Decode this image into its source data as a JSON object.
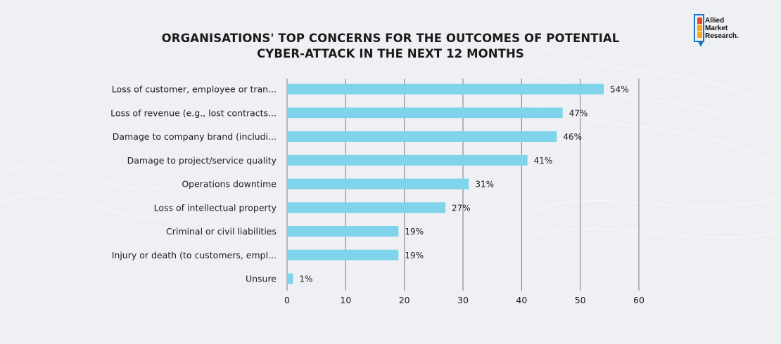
{
  "brand": {
    "line1": "Allied",
    "line2": "Market",
    "line3": "Research.",
    "colors": {
      "orange": "#f5a623",
      "red": "#e8452c",
      "blue": "#1d74c4"
    }
  },
  "chart_data": {
    "type": "bar",
    "orientation": "horizontal",
    "title_line1": "ORGANISATIONS' TOP CONCERNS FOR THE OUTCOMES OF POTENTIAL",
    "title_line2": "CYBER-ATTACK IN THE NEXT 12 MONTHS",
    "categories": [
      "Loss of customer, employee or tran...",
      "Loss of revenue (e.g., lost contracts...",
      "Damage to company brand (includi...",
      "Damage to project/service quality",
      "Operations downtime",
      "Loss of intellectual property",
      "Criminal or civil liabilities",
      "Injury or death (to customers, empl...",
      "Unsure"
    ],
    "values": [
      54,
      47,
      46,
      41,
      31,
      27,
      19,
      19,
      1
    ],
    "value_labels": [
      "54%",
      "47%",
      "46%",
      "41%",
      "31%",
      "27%",
      "19%",
      "19%",
      "1%"
    ],
    "xlim": [
      0,
      60
    ],
    "xticks": [
      0,
      10,
      20,
      30,
      40,
      50,
      60
    ],
    "xtick_labels": [
      "0",
      "10",
      "20",
      "30",
      "40",
      "50",
      "60"
    ],
    "grid": true,
    "bar_color": "#7fd3ea",
    "grid_color": "#7a7a7a"
  }
}
